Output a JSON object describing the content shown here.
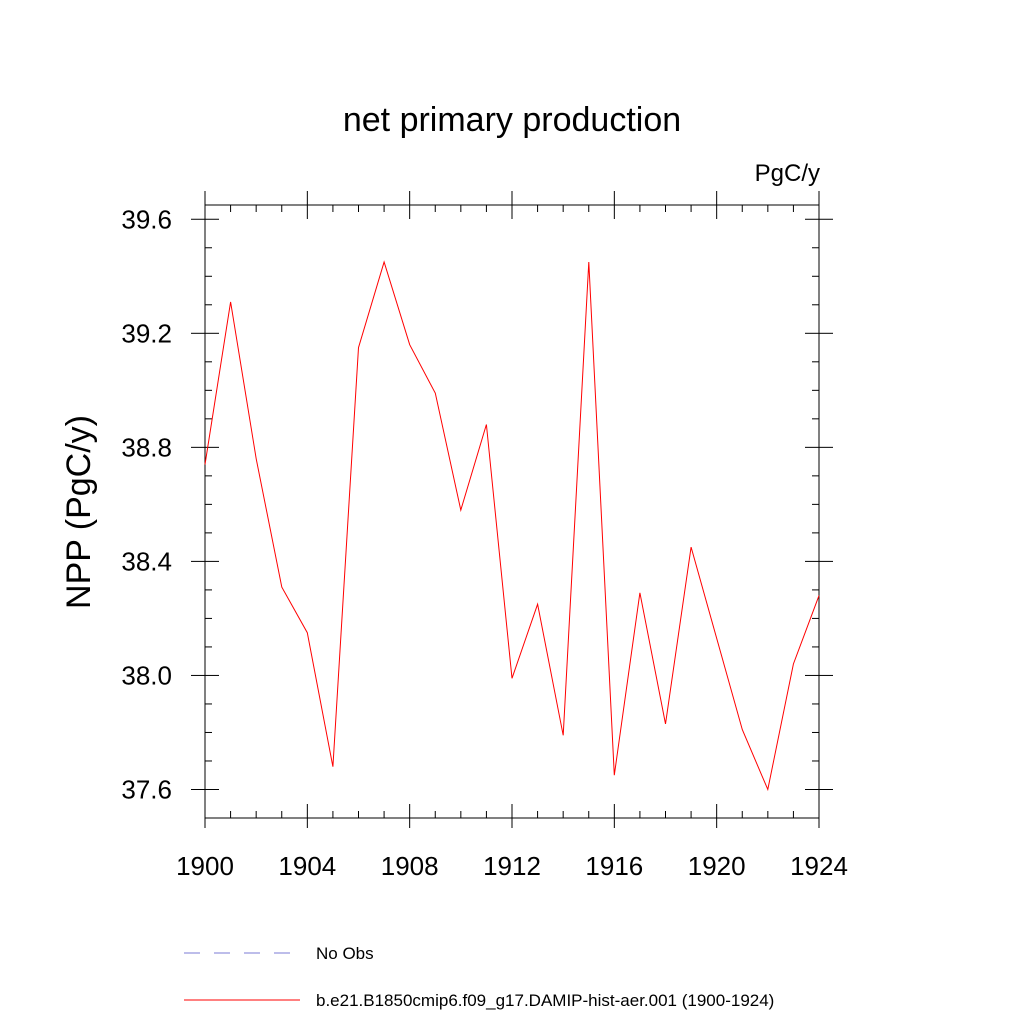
{
  "chart_data": {
    "type": "line",
    "title": "net primary production",
    "units_label": "PgC/y",
    "ylabel": "NPP  (PgC/y)",
    "xlabel": "",
    "xlim": [
      1900,
      1924
    ],
    "ylim": [
      37.5,
      39.65
    ],
    "x_ticks": [
      1900,
      1904,
      1908,
      1912,
      1916,
      1920,
      1924
    ],
    "x_tick_labels": [
      "1900",
      "1904",
      "1908",
      "1912",
      "1916",
      "1920",
      "1924"
    ],
    "y_ticks": [
      37.6,
      38.0,
      38.4,
      38.8,
      39.2,
      39.6
    ],
    "y_tick_labels": [
      "37.6",
      "38.0",
      "38.4",
      "38.8",
      "39.2",
      "39.6"
    ],
    "grid": false,
    "legend_position": "bottom",
    "series": [
      {
        "name": "b.e21.B1850cmip6.f09_g17.DAMIP-hist-aer.001 (1900-1924)",
        "color": "#ff0000",
        "style": "solid",
        "x": [
          1900,
          1901,
          1902,
          1903,
          1904,
          1905,
          1906,
          1907,
          1908,
          1909,
          1910,
          1911,
          1912,
          1913,
          1914,
          1915,
          1916,
          1917,
          1918,
          1919,
          1920,
          1921,
          1922,
          1923,
          1924
        ],
        "y": [
          38.74,
          39.31,
          38.76,
          38.31,
          38.15,
          37.68,
          39.15,
          39.45,
          39.16,
          38.99,
          38.58,
          38.88,
          37.99,
          38.25,
          37.79,
          39.45,
          37.65,
          38.29,
          37.83,
          38.45,
          38.13,
          37.81,
          37.6,
          38.04,
          38.28
        ]
      }
    ],
    "legend": [
      {
        "label": "No Obs",
        "color": "#7b7bd6",
        "style": "dashed"
      },
      {
        "label": "b.e21.B1850cmip6.f09_g17.DAMIP-hist-aer.001 (1900-1924)",
        "color": "#ff0000",
        "style": "solid"
      }
    ]
  }
}
